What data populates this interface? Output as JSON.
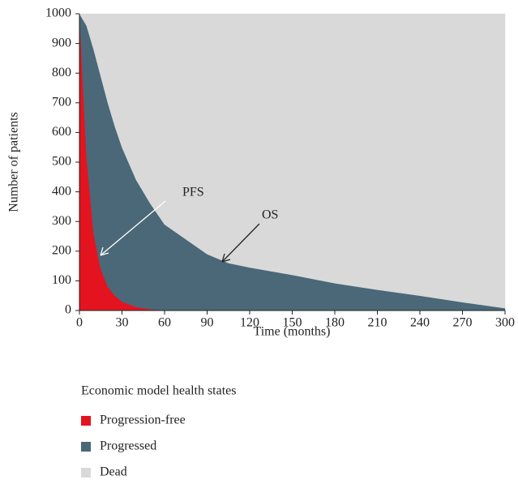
{
  "chart_data": {
    "type": "area",
    "stacked": true,
    "x_label": "Time (months)",
    "y_label": "Number of patients",
    "legend_title": "Economic model health states",
    "x": [
      0,
      5,
      10,
      15,
      20,
      25,
      30,
      40,
      50,
      60,
      75,
      90,
      105,
      120,
      150,
      180,
      210,
      240,
      270,
      300
    ],
    "series": [
      {
        "name": "Progression-free",
        "color": "#e3141f",
        "values": [
          1000,
          520,
          260,
          140,
          80,
          50,
          30,
          12,
          4,
          1,
          0,
          0,
          0,
          0,
          0,
          0,
          0,
          0,
          0,
          0
        ]
      },
      {
        "name": "Progressed",
        "color": "#4a6878",
        "values": [
          0,
          440,
          620,
          650,
          620,
          570,
          520,
          428,
          356,
          289,
          240,
          190,
          160,
          145,
          120,
          92,
          70,
          50,
          28,
          8
        ]
      },
      {
        "name": "Dead",
        "color": "#d9d9d9",
        "values": [
          0,
          40,
          120,
          210,
          300,
          380,
          450,
          560,
          640,
          710,
          760,
          810,
          840,
          855,
          880,
          908,
          930,
          950,
          972,
          992
        ]
      }
    ],
    "annotations": [
      "PFS",
      "OS"
    ],
    "xlim": [
      0,
      300
    ],
    "xticks": [
      0,
      30,
      60,
      90,
      120,
      150,
      180,
      210,
      240,
      270,
      300
    ],
    "ylim": [
      0,
      1000
    ],
    "yticks": [
      0,
      100,
      200,
      300,
      400,
      500,
      600,
      700,
      800,
      900,
      1000
    ]
  }
}
